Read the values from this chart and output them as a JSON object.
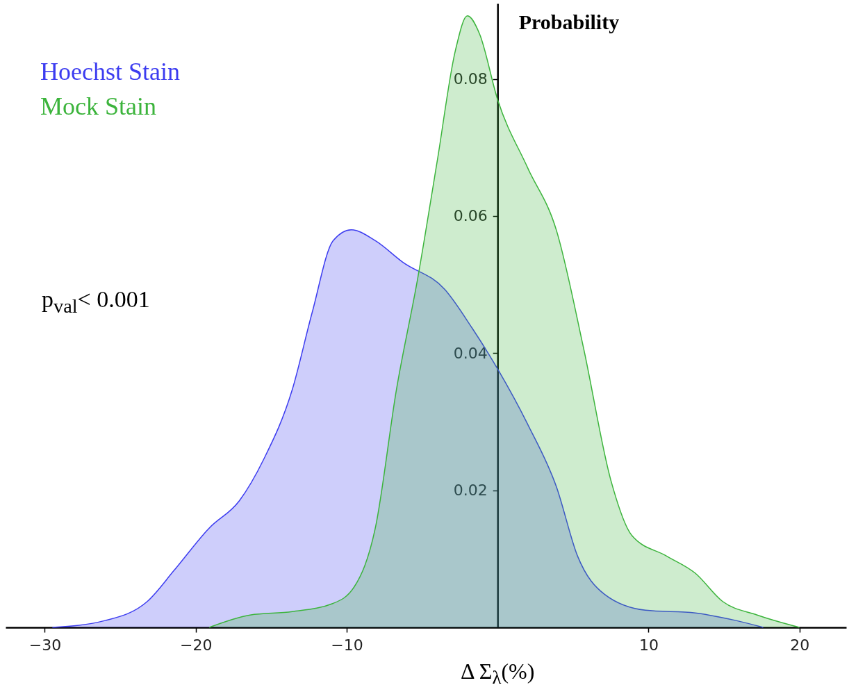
{
  "chart_data": {
    "type": "area",
    "xlabel": "Δ Σ$_{λ}$(%)",
    "ylabel": "Probability",
    "annotations": [
      "p$_{val}$< 0.001"
    ],
    "legend": "top left",
    "grid": false,
    "xlim": [
      -32.6,
      23.1
    ],
    "ylim": [
      0,
      0.091
    ],
    "xticks": [
      -30,
      -20,
      -10,
      10,
      20
    ],
    "yticks": [
      0.02,
      0.04,
      0.06,
      0.08
    ],
    "series": [
      {
        "name": "Hoechst Stain",
        "color": "#3c3cf0",
        "x": [
          -29.5,
          -26,
          -23.2,
          -21.4,
          -19.1,
          -17.1,
          -15.5,
          -13.6,
          -12.3,
          -10.9,
          -9.7,
          -8.1,
          -6.3,
          -3.5,
          -1.7,
          0,
          2,
          3.9,
          5.3,
          7.1,
          9.8,
          13.1,
          15.8,
          17.6
        ],
        "values": [
          0,
          0.001,
          0.0038,
          0.0084,
          0.0145,
          0.0185,
          0.0245,
          0.0347,
          0.0458,
          0.0564,
          0.058,
          0.0564,
          0.0533,
          0.0493,
          0.0437,
          0.0377,
          0.0296,
          0.0205,
          0.0104,
          0.0048,
          0.0025,
          0.0021,
          0.001,
          0
        ]
      },
      {
        "name": "Mock Stain",
        "color": "#3cb43c",
        "x": [
          -19.1,
          -16.4,
          -13.6,
          -10.9,
          -9.5,
          -8.1,
          -6.7,
          -5.3,
          -4,
          -2.8,
          -2,
          -1.2,
          0,
          2,
          3.9,
          5.7,
          7.5,
          8.9,
          11.2,
          13.1,
          14.9,
          17.2,
          20
        ],
        "values": [
          0,
          0.0018,
          0.0023,
          0.0035,
          0.0059,
          0.0145,
          0.0347,
          0.0508,
          0.068,
          0.0841,
          0.0892,
          0.0866,
          0.077,
          0.067,
          0.0579,
          0.0407,
          0.0215,
          0.0134,
          0.0104,
          0.0079,
          0.0038,
          0.0018,
          0
        ]
      }
    ]
  }
}
